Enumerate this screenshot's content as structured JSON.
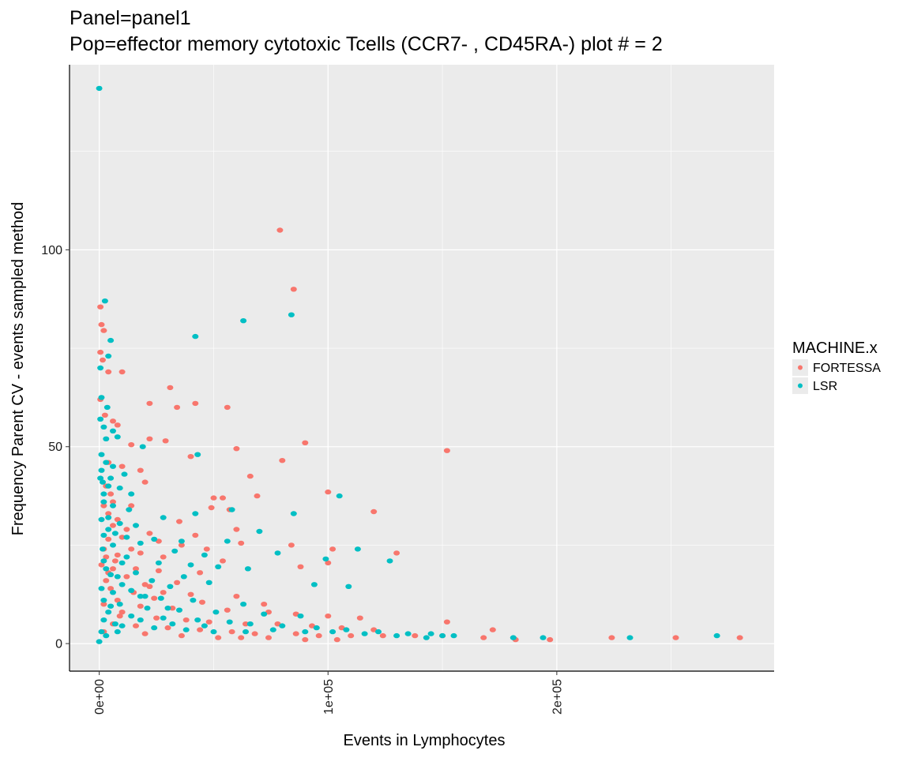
{
  "chart_data": {
    "type": "scatter",
    "title": "Panel=panel1",
    "subtitle": "Pop=effector memory cytotoxic Tcells (CCR7- , CD45RA-) plot # = 2",
    "xlabel": "Events in Lymphocytes",
    "ylabel": "Frequency Parent CV - events sampled method",
    "xlim": [
      -13000,
      295000
    ],
    "ylim": [
      -7,
      147
    ],
    "x_ticks": [
      0,
      100000,
      200000
    ],
    "x_tick_labels": [
      "0e+00",
      "1e+05",
      "2e+05"
    ],
    "y_ticks": [
      0,
      50,
      100
    ],
    "y_tick_labels": [
      "0",
      "50",
      "100"
    ],
    "grid": true,
    "legend": {
      "title": "MACHINE.x",
      "position": "right",
      "entries": [
        "FORTESSA",
        "LSR"
      ]
    },
    "colors": {
      "FORTESSA": "#f8766d",
      "LSR": "#00bfc4",
      "panel": "#ebebeb",
      "grid": "#ffffff"
    },
    "series": [
      {
        "name": "FORTESSA",
        "color": "#f8766d",
        "points": [
          [
            79000,
            105
          ],
          [
            85000,
            90
          ],
          [
            500,
            85.5
          ],
          [
            1000,
            81
          ],
          [
            2000,
            79.5
          ],
          [
            500,
            74
          ],
          [
            1500,
            72
          ],
          [
            4000,
            69
          ],
          [
            10000,
            69
          ],
          [
            31000,
            65
          ],
          [
            42000,
            61
          ],
          [
            22000,
            61
          ],
          [
            34000,
            60
          ],
          [
            56000,
            60
          ],
          [
            500,
            62
          ],
          [
            2500,
            58
          ],
          [
            6000,
            56.5
          ],
          [
            8000,
            55.5
          ],
          [
            22000,
            52
          ],
          [
            29000,
            51.5
          ],
          [
            90000,
            51
          ],
          [
            14000,
            50.5
          ],
          [
            60000,
            49.5
          ],
          [
            152000,
            49
          ],
          [
            40000,
            47.5
          ],
          [
            80000,
            46.5
          ],
          [
            4000,
            46
          ],
          [
            10000,
            45
          ],
          [
            18000,
            44
          ],
          [
            66000,
            42.5
          ],
          [
            20000,
            41
          ],
          [
            100000,
            38.5
          ],
          [
            69000,
            37.5
          ],
          [
            50000,
            37
          ],
          [
            54000,
            37
          ],
          [
            6000,
            36
          ],
          [
            14000,
            35
          ],
          [
            49000,
            34.5
          ],
          [
            57000,
            34
          ],
          [
            120000,
            33.5
          ],
          [
            4000,
            33
          ],
          [
            8000,
            31.5
          ],
          [
            35000,
            31
          ],
          [
            12000,
            29
          ],
          [
            60000,
            29
          ],
          [
            22000,
            28
          ],
          [
            42000,
            27.5
          ],
          [
            4000,
            26.5
          ],
          [
            26000,
            26
          ],
          [
            62000,
            25.5
          ],
          [
            84000,
            25
          ],
          [
            36000,
            25
          ],
          [
            2000,
            24
          ],
          [
            47000,
            24
          ],
          [
            102000,
            24
          ],
          [
            18000,
            23
          ],
          [
            130000,
            23
          ],
          [
            8000,
            22.5
          ],
          [
            28000,
            22
          ],
          [
            54000,
            21
          ],
          [
            100000,
            20.5
          ],
          [
            88000,
            19.5
          ],
          [
            6000,
            19
          ],
          [
            26000,
            18.5
          ],
          [
            44000,
            18
          ],
          [
            12000,
            17
          ],
          [
            3000,
            16
          ],
          [
            34000,
            15.5
          ],
          [
            22000,
            14.5
          ],
          [
            5000,
            14
          ],
          [
            15000,
            13
          ],
          [
            40000,
            12.5
          ],
          [
            60000,
            12
          ],
          [
            24000,
            11.5
          ],
          [
            8000,
            11
          ],
          [
            45000,
            10.5
          ],
          [
            72000,
            10
          ],
          [
            2000,
            10
          ],
          [
            18000,
            9.5
          ],
          [
            32000,
            9
          ],
          [
            56000,
            8.5
          ],
          [
            74000,
            8
          ],
          [
            86000,
            7.5
          ],
          [
            100000,
            7
          ],
          [
            114000,
            6.5
          ],
          [
            9000,
            7
          ],
          [
            25000,
            6.5
          ],
          [
            38000,
            6
          ],
          [
            48000,
            5.5
          ],
          [
            64000,
            5
          ],
          [
            78000,
            5
          ],
          [
            93000,
            4.5
          ],
          [
            106000,
            4
          ],
          [
            120000,
            3.5
          ],
          [
            152000,
            5.5
          ],
          [
            172000,
            3.5
          ],
          [
            16000,
            4.5
          ],
          [
            30000,
            4
          ],
          [
            44000,
            3.5
          ],
          [
            58000,
            3
          ],
          [
            68000,
            2.5
          ],
          [
            86000,
            2.5
          ],
          [
            96000,
            2
          ],
          [
            110000,
            2
          ],
          [
            124000,
            2
          ],
          [
            138000,
            2
          ],
          [
            150000,
            2
          ],
          [
            168000,
            1.5
          ],
          [
            182000,
            1
          ],
          [
            197000,
            1
          ],
          [
            224000,
            1.5
          ],
          [
            252000,
            1.5
          ],
          [
            280000,
            1.5
          ],
          [
            20000,
            2.5
          ],
          [
            36000,
            2
          ],
          [
            52000,
            1.5
          ],
          [
            62000,
            1.5
          ],
          [
            74000,
            1.5
          ],
          [
            90000,
            1
          ],
          [
            104000,
            1
          ],
          [
            3000,
            40
          ],
          [
            5000,
            38
          ],
          [
            2000,
            35
          ],
          [
            6000,
            30
          ],
          [
            10000,
            27
          ],
          [
            3000,
            22
          ],
          [
            7000,
            21
          ],
          [
            4000,
            18
          ],
          [
            1000,
            20
          ],
          [
            14000,
            24
          ],
          [
            16000,
            19
          ],
          [
            20000,
            15
          ],
          [
            28000,
            13
          ],
          [
            10000,
            8
          ],
          [
            6000,
            5
          ],
          [
            2000,
            3
          ]
        ]
      },
      {
        "name": "LSR",
        "color": "#00bfc4",
        "points": [
          [
            0,
            141
          ],
          [
            2500,
            87
          ],
          [
            5000,
            77
          ],
          [
            4000,
            73
          ],
          [
            500,
            70
          ],
          [
            1000,
            62.5
          ],
          [
            3500,
            60
          ],
          [
            63000,
            82
          ],
          [
            84000,
            83.5
          ],
          [
            42000,
            78
          ],
          [
            500,
            57
          ],
          [
            2000,
            55
          ],
          [
            6000,
            54
          ],
          [
            8000,
            52.5
          ],
          [
            19000,
            50
          ],
          [
            43000,
            48
          ],
          [
            1000,
            48
          ],
          [
            3000,
            46
          ],
          [
            6000,
            45
          ],
          [
            11000,
            43
          ],
          [
            500,
            42
          ],
          [
            1500,
            41
          ],
          [
            4000,
            40
          ],
          [
            9000,
            39.5
          ],
          [
            14000,
            38
          ],
          [
            105000,
            37.5
          ],
          [
            2000,
            36
          ],
          [
            6000,
            35
          ],
          [
            13000,
            34
          ],
          [
            58000,
            34
          ],
          [
            85000,
            33
          ],
          [
            42000,
            33
          ],
          [
            28000,
            32
          ],
          [
            1000,
            31.5
          ],
          [
            9000,
            30.5
          ],
          [
            16000,
            30
          ],
          [
            4000,
            29
          ],
          [
            70000,
            28.5
          ],
          [
            2000,
            27.5
          ],
          [
            12000,
            27
          ],
          [
            24000,
            26.5
          ],
          [
            36000,
            26
          ],
          [
            56000,
            26
          ],
          [
            18000,
            25.5
          ],
          [
            6000,
            25
          ],
          [
            113000,
            24
          ],
          [
            33000,
            23.5
          ],
          [
            78000,
            23
          ],
          [
            46000,
            22.5
          ],
          [
            99000,
            21.5
          ],
          [
            127000,
            21
          ],
          [
            2000,
            21
          ],
          [
            10000,
            20.5
          ],
          [
            26000,
            20.5
          ],
          [
            40000,
            20
          ],
          [
            52000,
            19.5
          ],
          [
            65000,
            19
          ],
          [
            16000,
            18
          ],
          [
            5000,
            17.5
          ],
          [
            37000,
            17
          ],
          [
            23000,
            16
          ],
          [
            48000,
            15.5
          ],
          [
            94000,
            15
          ],
          [
            10000,
            15
          ],
          [
            31000,
            14.5
          ],
          [
            109000,
            14.5
          ],
          [
            1000,
            14
          ],
          [
            14000,
            13.5
          ],
          [
            6000,
            13
          ],
          [
            18000,
            12
          ],
          [
            27000,
            11.5
          ],
          [
            2000,
            11
          ],
          [
            41000,
            11
          ],
          [
            63000,
            10
          ],
          [
            9000,
            10
          ],
          [
            21000,
            9
          ],
          [
            35000,
            8.5
          ],
          [
            51000,
            8
          ],
          [
            72000,
            7.5
          ],
          [
            88000,
            7
          ],
          [
            4000,
            8
          ],
          [
            14000,
            7
          ],
          [
            28000,
            6.5
          ],
          [
            43000,
            6
          ],
          [
            57000,
            5.5
          ],
          [
            66000,
            5
          ],
          [
            80000,
            4.5
          ],
          [
            95000,
            4
          ],
          [
            108000,
            3.5
          ],
          [
            122000,
            3
          ],
          [
            135000,
            2.5
          ],
          [
            145000,
            2.5
          ],
          [
            155000,
            2
          ],
          [
            10000,
            4.5
          ],
          [
            24000,
            4
          ],
          [
            38000,
            3.5
          ],
          [
            50000,
            3
          ],
          [
            64000,
            3
          ],
          [
            76000,
            3.5
          ],
          [
            90000,
            3
          ],
          [
            102000,
            3
          ],
          [
            116000,
            2.5
          ],
          [
            130000,
            2
          ],
          [
            143000,
            1.5
          ],
          [
            150000,
            2
          ],
          [
            181000,
            1.5
          ],
          [
            194000,
            1.5
          ],
          [
            232000,
            1.5
          ],
          [
            270000,
            2
          ],
          [
            1000,
            3
          ],
          [
            0,
            0.5
          ],
          [
            3000,
            2
          ],
          [
            7000,
            5
          ],
          [
            18000,
            6
          ],
          [
            32000,
            5
          ],
          [
            46000,
            4.5
          ],
          [
            1000,
            44
          ],
          [
            3000,
            52
          ],
          [
            5000,
            42
          ],
          [
            2000,
            38
          ],
          [
            4000,
            32
          ],
          [
            7000,
            28
          ],
          [
            1500,
            24
          ],
          [
            3000,
            19
          ],
          [
            8000,
            17
          ],
          [
            12000,
            22
          ],
          [
            20000,
            12
          ],
          [
            30000,
            9
          ],
          [
            5000,
            9.5
          ],
          [
            2000,
            6
          ],
          [
            8000,
            3
          ]
        ]
      }
    ]
  }
}
